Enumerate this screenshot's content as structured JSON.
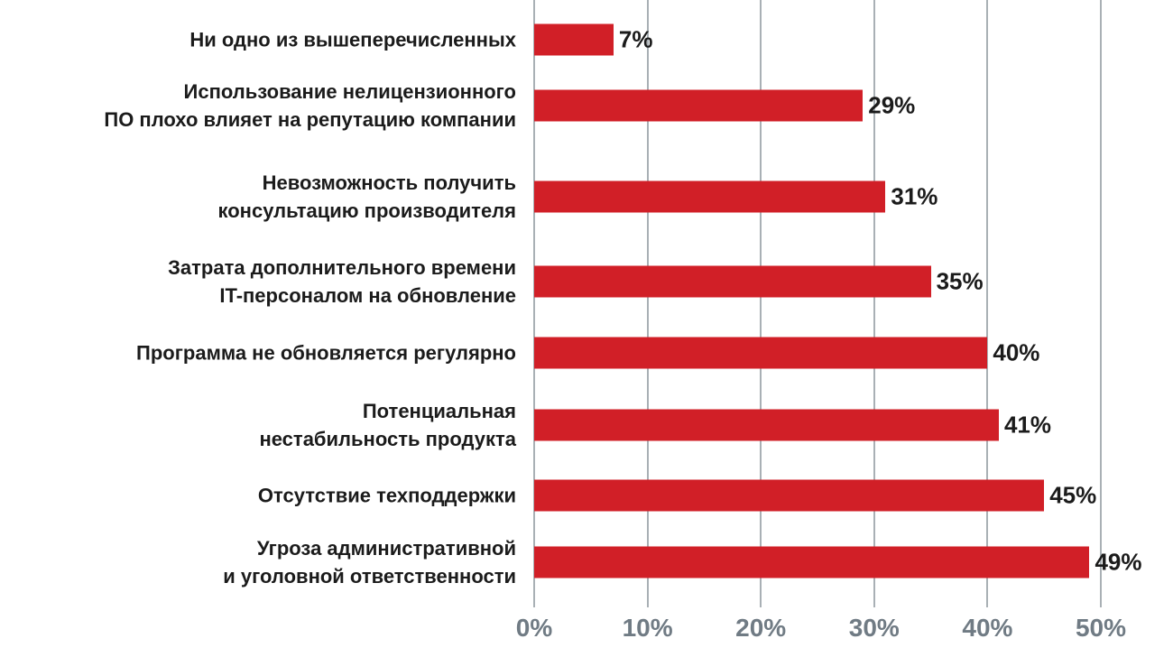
{
  "chart_data": {
    "type": "bar",
    "orientation": "horizontal",
    "categories": [
      "Ни одно из вышеперечисленных",
      "Использование нелицензионного\nПО плохо влияет на репутацию компании",
      "Невозможность получить\nконсультацию производителя",
      "Затрата дополнительного времени\nIT-персоналом на обновление",
      "Программа не обновляется регулярно",
      "Потенциальная\nнестабильность продукта",
      "Отсутствие техподдержки",
      "Угроза административной\nи уголовной ответственности"
    ],
    "values": [
      7,
      29,
      31,
      35,
      40,
      41,
      45,
      49
    ],
    "value_labels": [
      "7%",
      "29%",
      "31%",
      "35%",
      "40%",
      "41%",
      "45%",
      "49%"
    ],
    "xticks": [
      0,
      10,
      20,
      30,
      40,
      50
    ],
    "xtick_labels": [
      "0%",
      "10%",
      "20%",
      "30%",
      "40%",
      "50%"
    ],
    "xlim": [
      0,
      50
    ],
    "grid": "vertical",
    "bar_color": "#d11f27",
    "title": "",
    "xlabel": "",
    "ylabel": ""
  }
}
